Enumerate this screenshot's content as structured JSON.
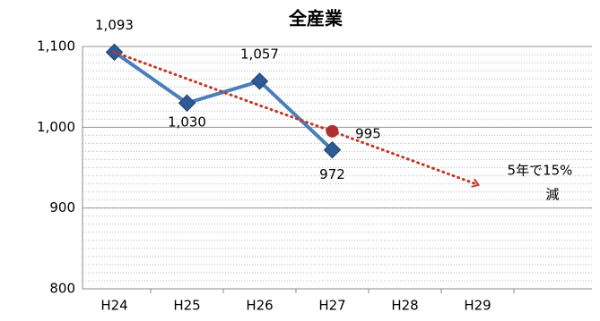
{
  "chart_data": {
    "type": "line",
    "title": "全産業",
    "categories": [
      "H24",
      "H25",
      "H26",
      "H27",
      "H28",
      "H29"
    ],
    "series": [
      {
        "name": "全産業",
        "color": "#4a7ebb",
        "values": [
          1093,
          1030,
          1057,
          972,
          null,
          null
        ],
        "value_labels": [
          "1,093",
          "1,030",
          "1,057",
          "972",
          null,
          null
        ]
      },
      {
        "name": "5年で15%減",
        "color": "#c0392b",
        "values": [
          1093,
          1060,
          1027,
          995,
          962,
          929
        ],
        "value_labels": [
          null,
          null,
          null,
          "995",
          null,
          null
        ]
      }
    ],
    "annotation": [
      "5年で15%",
      "減"
    ],
    "ylim": [
      800,
      1100
    ],
    "yticks": [
      800,
      900,
      {
        "value": 1000,
        "label": "1,000"
      },
      {
        "value": 1100,
        "label": "1,100"
      }
    ],
    "grid": true
  }
}
